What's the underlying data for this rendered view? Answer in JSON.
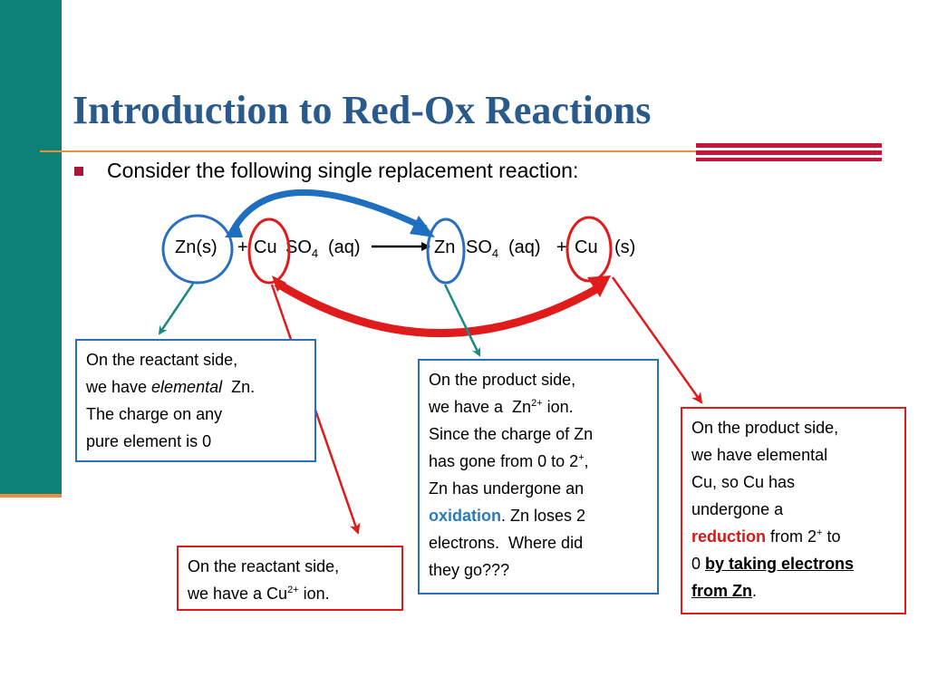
{
  "slide": {
    "title": "Introduction to Red-Ox Reactions",
    "bullet": "Consider the following single replacement reaction:",
    "equation": {
      "zn_s": "Zn(s)",
      "plus1": "+",
      "cu": "Cu",
      "so": "SO",
      "sub4": "4",
      "aq1": "(aq)",
      "zn2": "Zn",
      "so2": "SO",
      "sub4b": "4",
      "aq2": "(aq)",
      "plus2": "+",
      "cu2": "Cu",
      "s2": "(s)"
    },
    "box1": {
      "line1": "On the reactant side,",
      "line2a": "we have ",
      "line2b": "elemental",
      "line2c": "  Zn.",
      "line3": "The charge on any",
      "line4": "pure element is 0"
    },
    "box2": {
      "line1": "On the product side,",
      "line2a": "we have a  Zn",
      "line2sup": "2+",
      "line2b": " ion.",
      "line3": "Since the charge of Zn",
      "line4a": "has gone from 0 to 2",
      "line4sup": "+",
      "line4b": ",",
      "line5": "Zn has undergone an",
      "line6a": "oxidation",
      "line6b": ". Zn loses 2",
      "line7": "electrons.  Where did",
      "line8": "they go???"
    },
    "box3": {
      "line1": "On the reactant side,",
      "line2a": "we have a Cu",
      "line2sup": "2+",
      "line2b": " ion."
    },
    "box4": {
      "line1": "On the product side,",
      "line2": "we have elemental",
      "line3": "Cu, so Cu has",
      "line4": "undergone a",
      "line5a": "reduction",
      "line5b": " from 2",
      "line5sup": "+",
      "line5c": " to",
      "line6a": "0 ",
      "line6b": "by taking electrons",
      "line7a": "from Zn",
      "line7b": "."
    },
    "colors": {
      "sidebar": "#0d8078",
      "title": "#2a5a8c",
      "accent_red": "#c4183a",
      "blue": "#2a6ebf",
      "red": "#e01b1b",
      "teal": "#1a8a80"
    }
  }
}
